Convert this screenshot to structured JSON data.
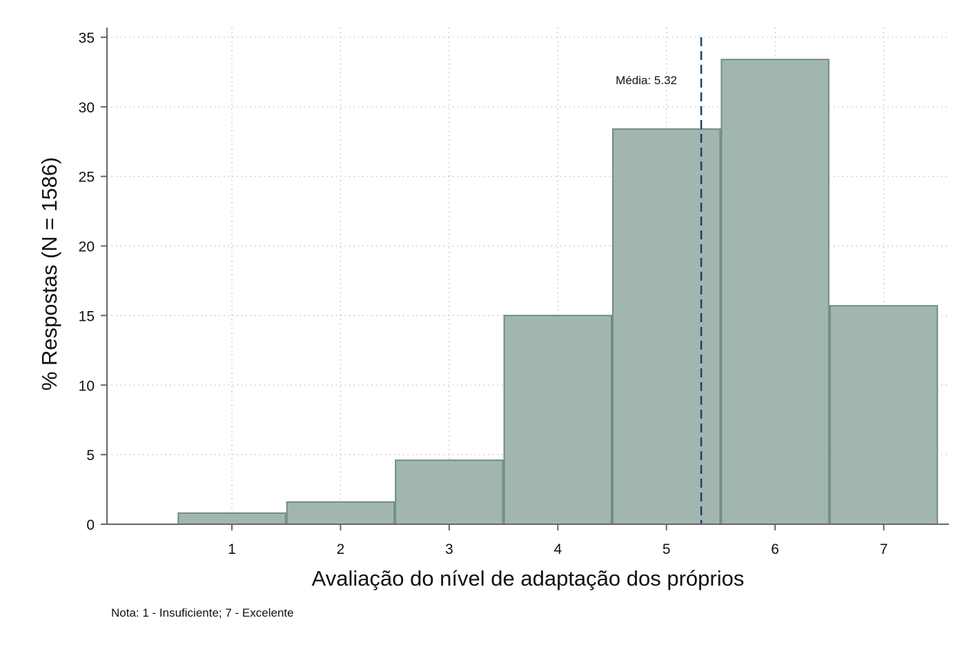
{
  "chart_data": {
    "type": "bar",
    "categories": [
      "1",
      "2",
      "3",
      "4",
      "5",
      "6",
      "7"
    ],
    "x": [
      1,
      2,
      3,
      4,
      5,
      6,
      7
    ],
    "values": [
      0.8,
      1.6,
      4.6,
      15.0,
      28.4,
      33.4,
      15.7
    ],
    "xlabel": "Avaliação do nível de adaptação dos próprios",
    "ylabel": "% Respostas (N = 1586)",
    "ylim": [
      0,
      35
    ],
    "xlim": [
      -0.15,
      7.6
    ],
    "yticks": [
      0,
      5,
      10,
      15,
      20,
      25,
      30,
      35
    ],
    "xticks": [
      1,
      2,
      3,
      4,
      5,
      6,
      7
    ],
    "grid": true,
    "bar_width": 1,
    "mean": {
      "value": 5.32,
      "label": "Média: 5.32"
    },
    "note": "Nota: 1 - Insuficiente; 7 - Excelente",
    "colors": {
      "bar_fill": "#a2b6b0",
      "bar_stroke": "#6f8c83",
      "mean_line": "#1f3f6a",
      "grid": "#b9b9b9",
      "axis": "#666666"
    }
  }
}
